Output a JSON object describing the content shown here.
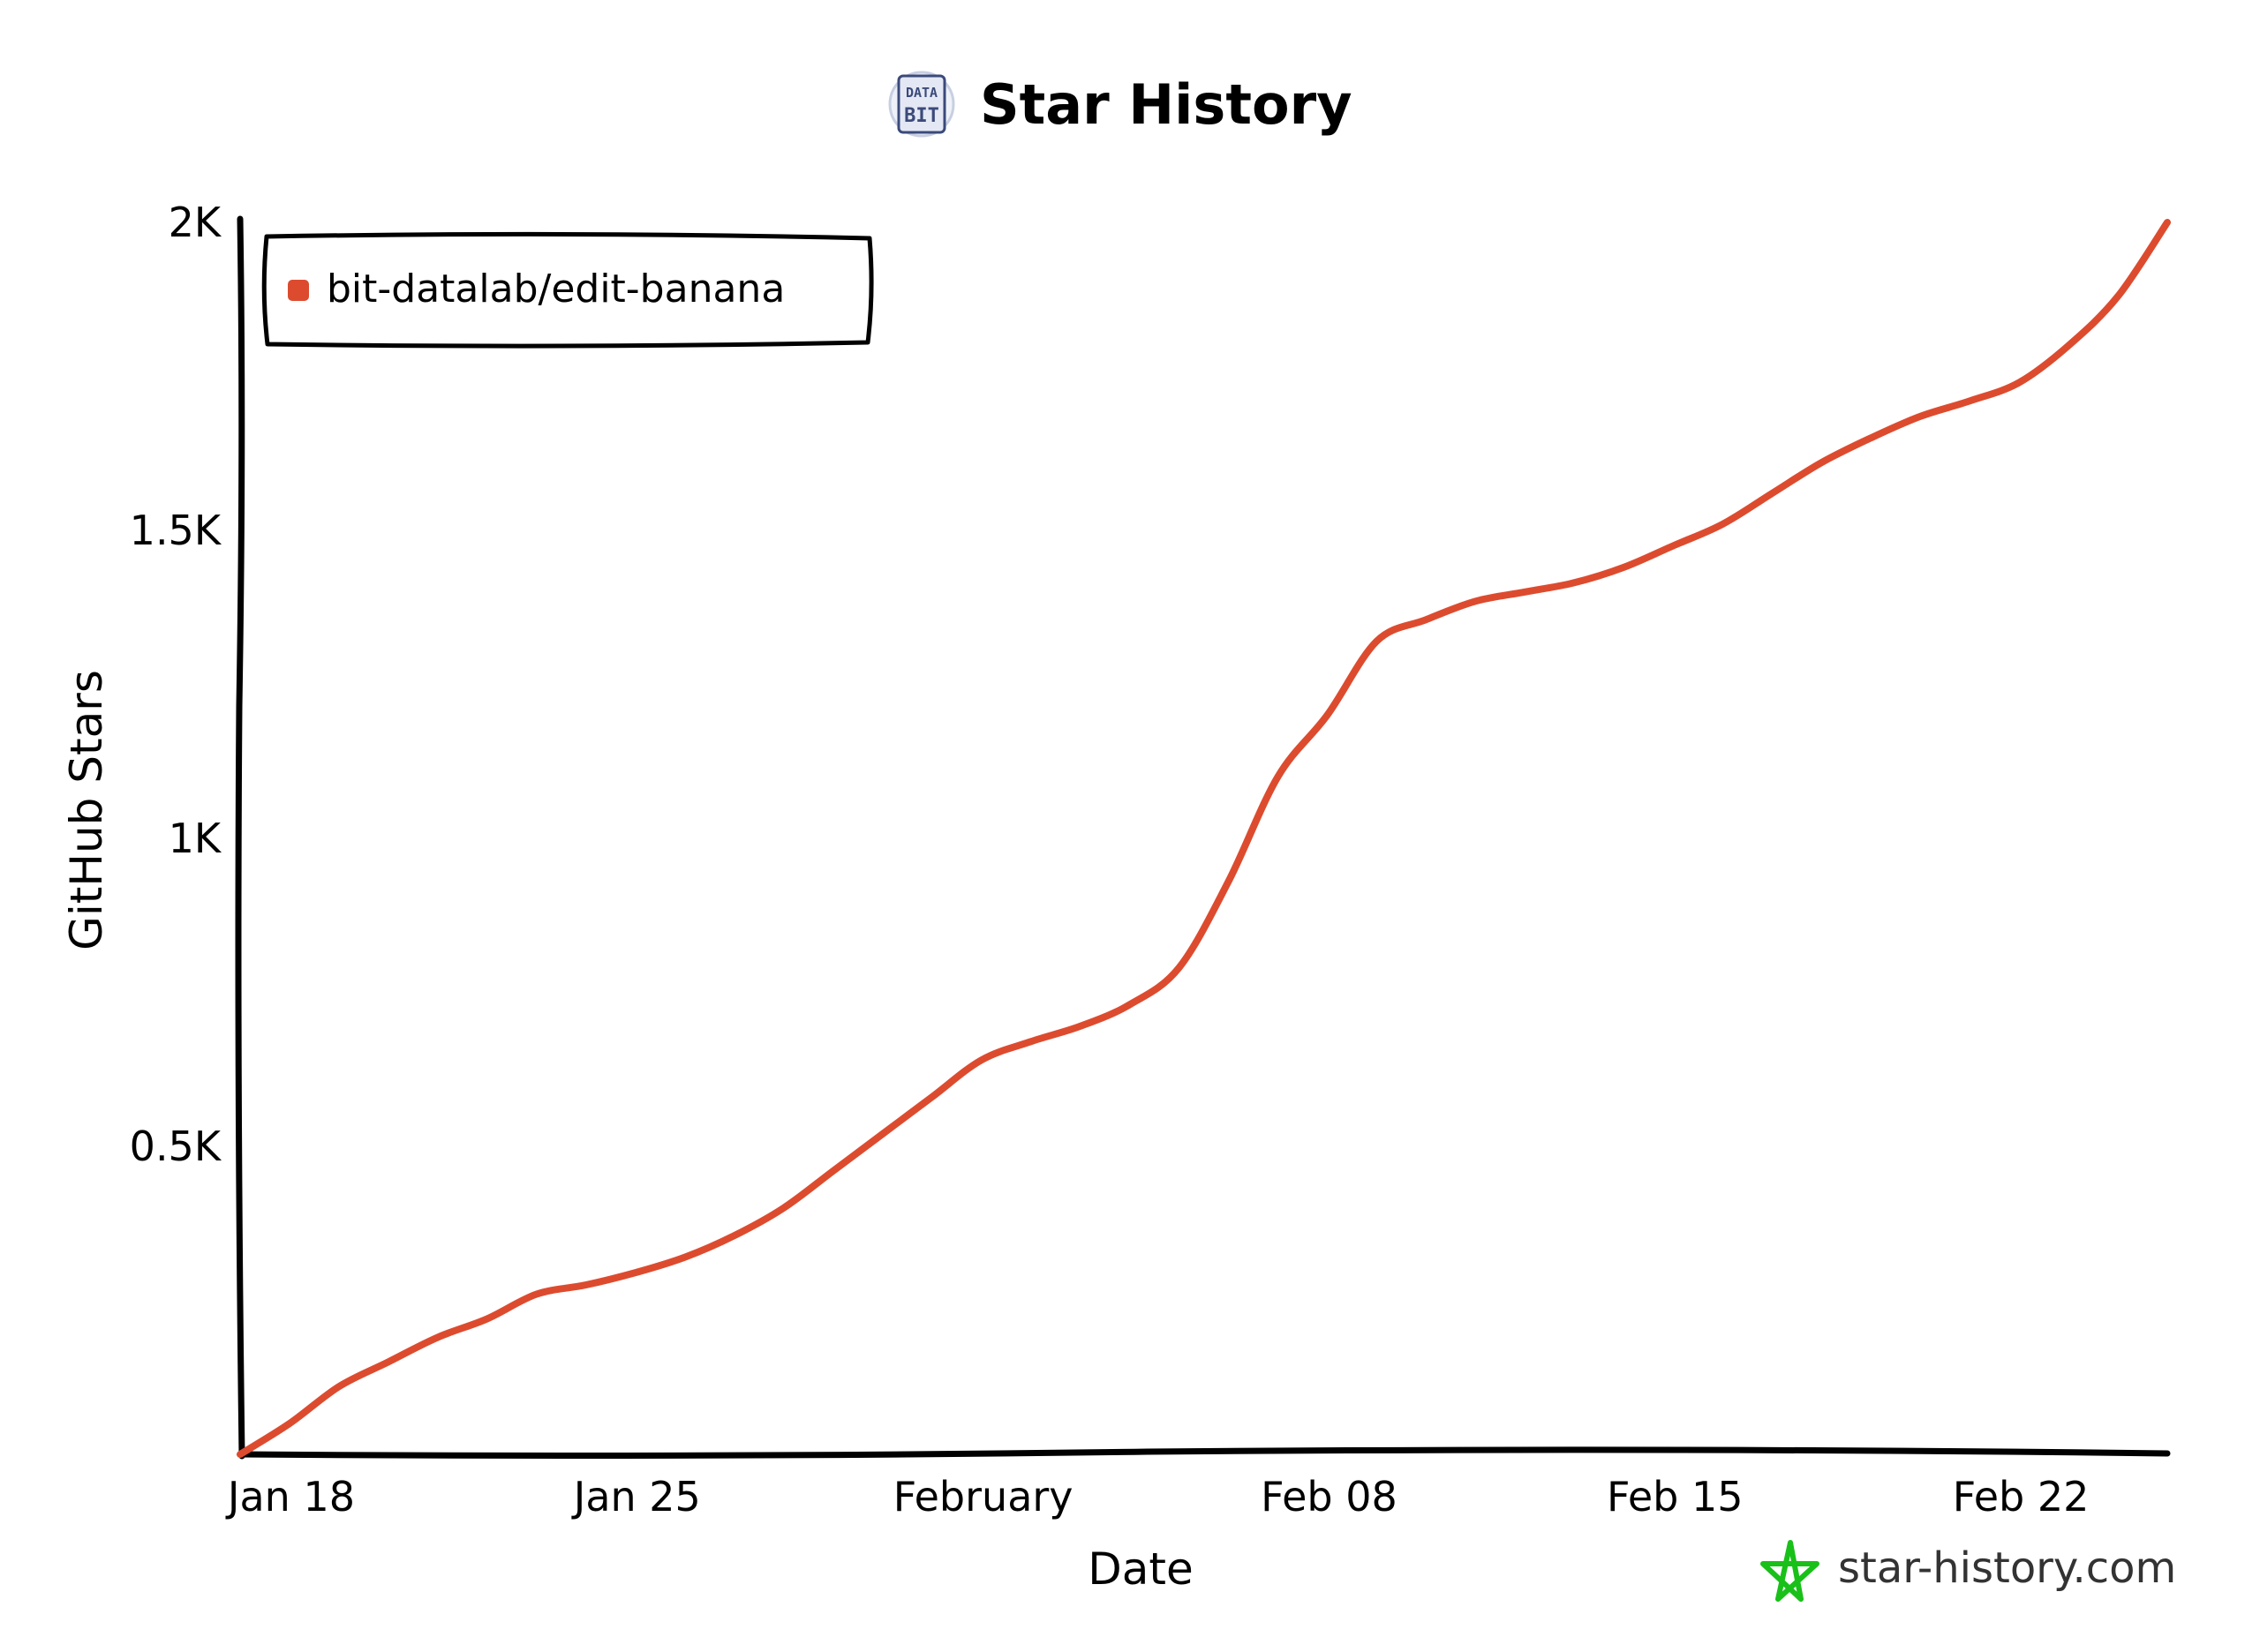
{
  "chart_data": {
    "type": "line",
    "title": "Star History",
    "xlabel": "Date",
    "ylabel": "GitHub Stars",
    "x_tick_labels": [
      "Jan 18",
      "Jan 25",
      "February",
      "Feb 08",
      "Feb 15",
      "Feb 22"
    ],
    "x_tick_dates": [
      "2026-01-18",
      "2026-01-25",
      "2026-02-01",
      "2026-02-08",
      "2026-02-15",
      "2026-02-22"
    ],
    "y_tick_labels": [
      "0.5K",
      "1K",
      "1.5K",
      "2K"
    ],
    "y_tick_values": [
      500,
      1000,
      1500,
      2000
    ],
    "xlim": [
      "2026-01-17",
      "2026-02-25"
    ],
    "ylim": [
      0,
      2000
    ],
    "legend_position": "top-left",
    "grid": false,
    "series": [
      {
        "name": "bit-datalab/edit-banana",
        "color": "#dd4b2f",
        "points": [
          {
            "x": "2026-01-17",
            "y": 0
          },
          {
            "x": "2026-01-18",
            "y": 50
          },
          {
            "x": "2026-01-19",
            "y": 110
          },
          {
            "x": "2026-01-20",
            "y": 150
          },
          {
            "x": "2026-01-21",
            "y": 190
          },
          {
            "x": "2026-01-22",
            "y": 220
          },
          {
            "x": "2026-01-23",
            "y": 260
          },
          {
            "x": "2026-01-24",
            "y": 275
          },
          {
            "x": "2026-01-25",
            "y": 295
          },
          {
            "x": "2026-01-26",
            "y": 320
          },
          {
            "x": "2026-01-27",
            "y": 355
          },
          {
            "x": "2026-01-28",
            "y": 400
          },
          {
            "x": "2026-01-29",
            "y": 460
          },
          {
            "x": "2026-01-30",
            "y": 520
          },
          {
            "x": "2026-01-31",
            "y": 580
          },
          {
            "x": "2026-02-01",
            "y": 640
          },
          {
            "x": "2026-02-02",
            "y": 670
          },
          {
            "x": "2026-02-03",
            "y": 695
          },
          {
            "x": "2026-02-04",
            "y": 730
          },
          {
            "x": "2026-02-05",
            "y": 790
          },
          {
            "x": "2026-02-06",
            "y": 930
          },
          {
            "x": "2026-02-07",
            "y": 1100
          },
          {
            "x": "2026-02-08",
            "y": 1200
          },
          {
            "x": "2026-02-09",
            "y": 1320
          },
          {
            "x": "2026-02-10",
            "y": 1355
          },
          {
            "x": "2026-02-11",
            "y": 1385
          },
          {
            "x": "2026-02-12",
            "y": 1400
          },
          {
            "x": "2026-02-13",
            "y": 1415
          },
          {
            "x": "2026-02-14",
            "y": 1440
          },
          {
            "x": "2026-02-15",
            "y": 1475
          },
          {
            "x": "2026-02-16",
            "y": 1510
          },
          {
            "x": "2026-02-17",
            "y": 1560
          },
          {
            "x": "2026-02-18",
            "y": 1610
          },
          {
            "x": "2026-02-19",
            "y": 1650
          },
          {
            "x": "2026-02-20",
            "y": 1685
          },
          {
            "x": "2026-02-21",
            "y": 1710
          },
          {
            "x": "2026-02-22",
            "y": 1740
          },
          {
            "x": "2026-02-23",
            "y": 1800
          },
          {
            "x": "2026-02-24",
            "y": 1880
          },
          {
            "x": "2026-02-25",
            "y": 2000
          }
        ]
      }
    ]
  },
  "logo": {
    "line1": "DATA",
    "line2": "BIT"
  },
  "watermark": {
    "text": "star-history.com",
    "icon_color": "#19c019"
  }
}
